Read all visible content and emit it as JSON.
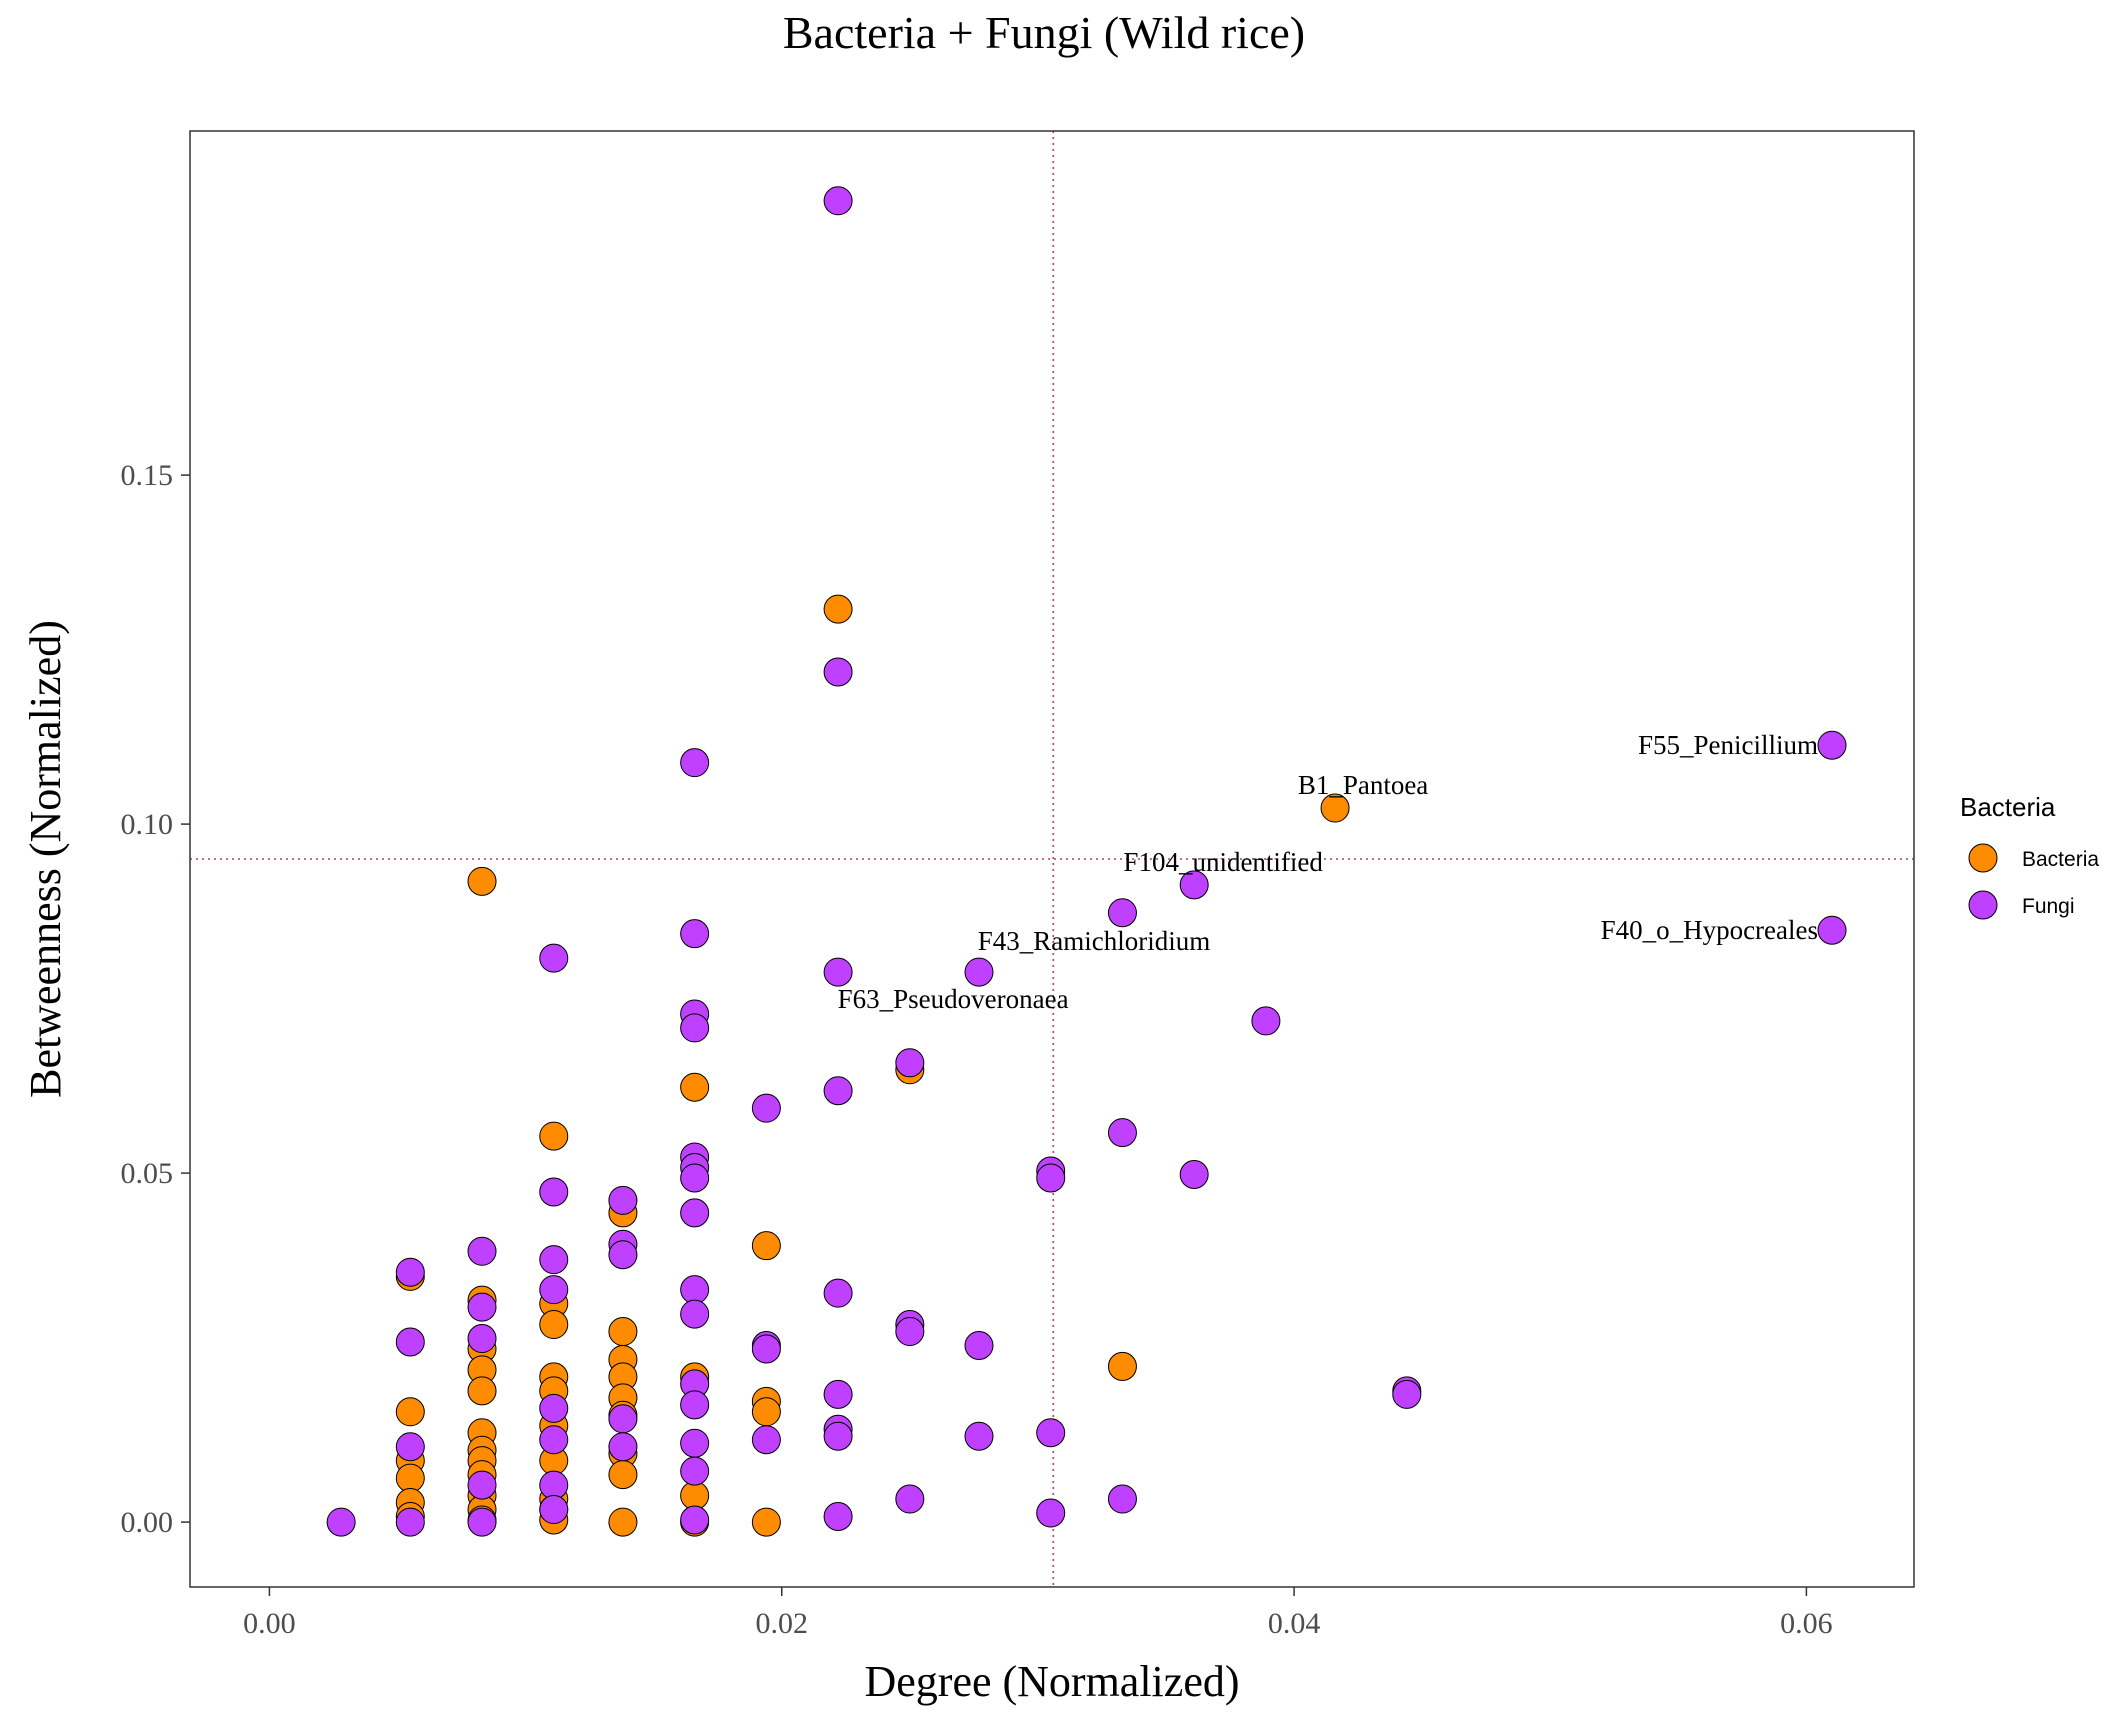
{
  "chart_data": {
    "type": "scatter",
    "title": "Bacteria + Fungi (Wild rice)",
    "xlabel": "Degree (Normalized)",
    "ylabel": "Betweenness (Normalized)",
    "xlim": [
      -0.0031,
      0.0642
    ],
    "ylim": [
      -0.0093,
      0.1993
    ],
    "x_ticks": [
      {
        "value": 0.0,
        "label": "0.00"
      },
      {
        "value": 0.02,
        "label": "0.02"
      },
      {
        "value": 0.04,
        "label": "0.04"
      },
      {
        "value": 0.06,
        "label": "0.06"
      }
    ],
    "y_ticks": [
      {
        "value": 0.0,
        "label": "0.00"
      },
      {
        "value": 0.05,
        "label": "0.05"
      },
      {
        "value": 0.1,
        "label": "0.10"
      },
      {
        "value": 0.15,
        "label": "0.15"
      }
    ],
    "grid": false,
    "reference_lines": {
      "x": 0.0306,
      "y": 0.095,
      "style": "dotted",
      "color": "#b0406a"
    },
    "legend": {
      "title": "Bacteria",
      "position": "right",
      "entries": [
        {
          "name": "Bacteria",
          "color": "#ff8c00"
        },
        {
          "name": "Fungi",
          "color": "#bf40ff"
        }
      ]
    },
    "series": [
      {
        "name": "Bacteria",
        "color": "#ff8c00",
        "points": [
          [
            0.0055,
            0.0352
          ],
          [
            0.0055,
            0.0158
          ],
          [
            0.0055,
            0.0088
          ],
          [
            0.0055,
            0.0063
          ],
          [
            0.0055,
            0.0028
          ],
          [
            0.0055,
            0.0008
          ],
          [
            0.0083,
            0.0918
          ],
          [
            0.0083,
            0.0318
          ],
          [
            0.0083,
            0.0248
          ],
          [
            0.0083,
            0.0218
          ],
          [
            0.0083,
            0.0188
          ],
          [
            0.0083,
            0.0128
          ],
          [
            0.0083,
            0.0103
          ],
          [
            0.0083,
            0.0088
          ],
          [
            0.0083,
            0.0068
          ],
          [
            0.0083,
            0.0038
          ],
          [
            0.0083,
            0.0018
          ],
          [
            0.0083,
            0.0003
          ],
          [
            0.0111,
            0.0553
          ],
          [
            0.0111,
            0.0313
          ],
          [
            0.0111,
            0.0283
          ],
          [
            0.0111,
            0.0208
          ],
          [
            0.0111,
            0.0188
          ],
          [
            0.0111,
            0.0138
          ],
          [
            0.0111,
            0.0088
          ],
          [
            0.0111,
            0.0033
          ],
          [
            0.0111,
            0.0018
          ],
          [
            0.0111,
            0.0003
          ],
          [
            0.0138,
            0.0443
          ],
          [
            0.0138,
            0.0273
          ],
          [
            0.0138,
            0.0233
          ],
          [
            0.0138,
            0.0208
          ],
          [
            0.0138,
            0.0178
          ],
          [
            0.0138,
            0.0153
          ],
          [
            0.0138,
            0.0098
          ],
          [
            0.0138,
            0.0068
          ],
          [
            0.0138,
            0.0
          ],
          [
            0.0166,
            0.0623
          ],
          [
            0.0166,
            0.0208
          ],
          [
            0.0166,
            0.0038
          ],
          [
            0.0166,
            0.0
          ],
          [
            0.0194,
            0.0396
          ],
          [
            0.0194,
            0.0173
          ],
          [
            0.0194,
            0.0158
          ],
          [
            0.0194,
            0.0
          ],
          [
            0.0222,
            0.1308
          ],
          [
            0.025,
            0.0648
          ],
          [
            0.0333,
            0.0223
          ],
          [
            0.0416,
            0.1023
          ]
        ]
      },
      {
        "name": "Fungi",
        "color": "#bf40ff",
        "points": [
          [
            0.0028,
            0.0
          ],
          [
            0.0055,
            0.0358
          ],
          [
            0.0055,
            0.0258
          ],
          [
            0.0055,
            0.0108
          ],
          [
            0.0055,
            0.0
          ],
          [
            0.0083,
            0.0388
          ],
          [
            0.0083,
            0.0308
          ],
          [
            0.0083,
            0.0263
          ],
          [
            0.0083,
            0.0053
          ],
          [
            0.0083,
            0.0
          ],
          [
            0.0111,
            0.0808
          ],
          [
            0.0111,
            0.0473
          ],
          [
            0.0111,
            0.0376
          ],
          [
            0.0111,
            0.0333
          ],
          [
            0.0111,
            0.0163
          ],
          [
            0.0111,
            0.0118
          ],
          [
            0.0111,
            0.0053
          ],
          [
            0.0111,
            0.0018
          ],
          [
            0.0138,
            0.0461
          ],
          [
            0.0138,
            0.0398
          ],
          [
            0.0138,
            0.0383
          ],
          [
            0.0138,
            0.0148
          ],
          [
            0.0138,
            0.0108
          ],
          [
            0.0166,
            0.1088
          ],
          [
            0.0166,
            0.0843
          ],
          [
            0.0166,
            0.0728
          ],
          [
            0.0166,
            0.0708
          ],
          [
            0.0166,
            0.0523
          ],
          [
            0.0166,
            0.0508
          ],
          [
            0.0166,
            0.0493
          ],
          [
            0.0166,
            0.0443
          ],
          [
            0.0166,
            0.0333
          ],
          [
            0.0166,
            0.0298
          ],
          [
            0.0166,
            0.0198
          ],
          [
            0.0166,
            0.0168
          ],
          [
            0.0166,
            0.0113
          ],
          [
            0.0166,
            0.0073
          ],
          [
            0.0166,
            0.0003
          ],
          [
            0.0194,
            0.0593
          ],
          [
            0.0194,
            0.0253
          ],
          [
            0.0194,
            0.0248
          ],
          [
            0.0194,
            0.0118
          ],
          [
            0.0222,
            0.1893
          ],
          [
            0.0222,
            0.1218
          ],
          [
            0.0222,
            0.0788
          ],
          [
            0.0222,
            0.0618
          ],
          [
            0.0222,
            0.0328
          ],
          [
            0.0222,
            0.0183
          ],
          [
            0.0222,
            0.0133
          ],
          [
            0.0222,
            0.0123
          ],
          [
            0.0222,
            0.0008
          ],
          [
            0.025,
            0.0658
          ],
          [
            0.025,
            0.0283
          ],
          [
            0.025,
            0.0273
          ],
          [
            0.025,
            0.0033
          ],
          [
            0.0277,
            0.0788
          ],
          [
            0.0277,
            0.0253
          ],
          [
            0.0277,
            0.0123
          ],
          [
            0.0305,
            0.0503
          ],
          [
            0.0305,
            0.0493
          ],
          [
            0.0305,
            0.0128
          ],
          [
            0.0305,
            0.0013
          ],
          [
            0.0333,
            0.0873
          ],
          [
            0.0333,
            0.0558
          ],
          [
            0.0333,
            0.0033
          ],
          [
            0.0361,
            0.0913
          ],
          [
            0.0361,
            0.0498
          ],
          [
            0.0389,
            0.0718
          ],
          [
            0.0444,
            0.0188
          ],
          [
            0.0444,
            0.0183
          ],
          [
            0.061,
            0.1113
          ],
          [
            0.061,
            0.0848
          ]
        ]
      }
    ],
    "annotations": [
      {
        "text": "F55_Penicillium",
        "x": 0.061,
        "y": 0.1113
      },
      {
        "text": "B1_Pantoea",
        "x": 0.0416,
        "y": 0.1023
      },
      {
        "text": "F104_unidentified",
        "x": 0.0361,
        "y": 0.0913
      },
      {
        "text": "F40_o_Hypocreales",
        "x": 0.061,
        "y": 0.0848
      },
      {
        "text": "F43_Ramichloridium",
        "x": 0.0277,
        "y": 0.0788
      },
      {
        "text": "F63_Pseudoveronaea",
        "x": 0.0222,
        "y": 0.0788
      }
    ]
  }
}
